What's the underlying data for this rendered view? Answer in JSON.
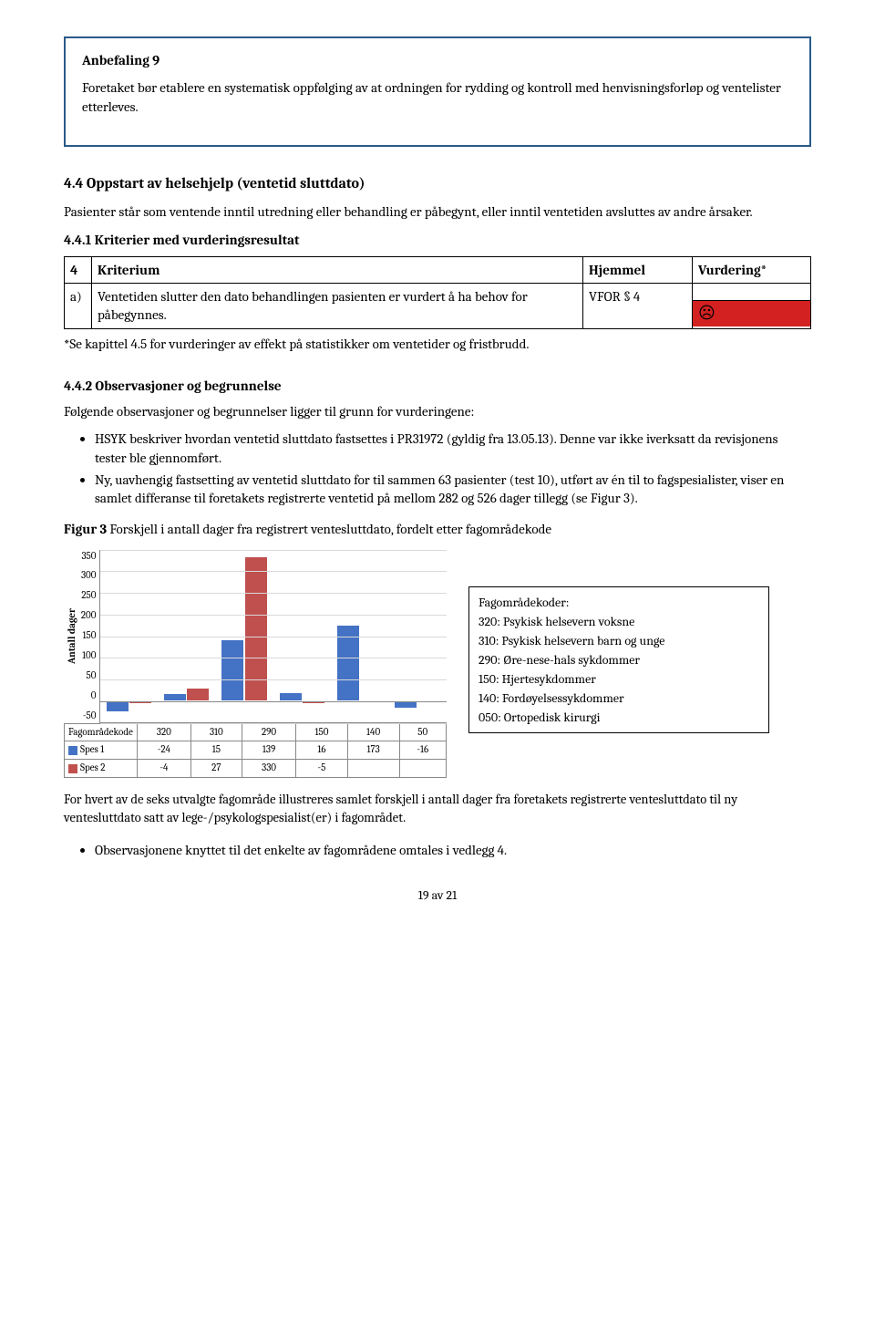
{
  "rec": {
    "title": "Anbefaling 9",
    "text": "Foretaket bør etablere en systematisk oppfølging av at ordningen for rydding og kontroll med henvisningsforløp og ventelister etterleves."
  },
  "sec44": {
    "heading": "4.4 Oppstart av helsehjelp (ventetid sluttdato)",
    "para": "Pasienter står som ventende inntil utredning eller behandling er påbegynt, eller inntil ventetiden avsluttes av andre årsaker."
  },
  "sec441": {
    "heading": "4.4.1 Kriterier med vurderingsresultat"
  },
  "crit": {
    "headers": {
      "idx": "4",
      "krit": "Kriterium",
      "hj": "Hjemmel",
      "vd": "Vurdering*"
    },
    "row": {
      "idx": "a)",
      "text": "Ventetiden slutter den dato behandlingen pasienten er vurdert å ha behov for påbegynnes.",
      "hj": "VFOR § 4",
      "icon": "☹"
    },
    "note": "*Se kapittel 4.5 for vurderinger av effekt på statistikker om ventetider og fristbrudd."
  },
  "sec442": {
    "heading": "4.4.2 Observasjoner og begrunnelse",
    "intro": "Følgende observasjoner og begrunnelser ligger til grunn for vurderingene:",
    "b1": "HSYK beskriver hvordan ventetid sluttdato fastsettes i PR31972 (gyldig fra 13.05.13). Denne var ikke iverksatt da revisjonens tester ble gjennomført.",
    "b2": "Ny, uavhengig fastsetting av ventetid sluttdato for til sammen 63 pasienter (test 10), utført av én til to fagspesialister, viser en samlet differanse til foretakets registrerte ventetid på mellom 282 og 526 dager tillegg (se Figur 3)."
  },
  "fig3": {
    "title_bold": "Figur 3",
    "title_rest": " Forskjell i antall dager fra registrert ventesluttdato, fordelt etter fagområdekode"
  },
  "chart": {
    "ylabel": "Antall dager",
    "ymin": -50,
    "ymax": 350,
    "yticks": [
      "350",
      "300",
      "250",
      "200",
      "150",
      "100",
      "50",
      "0",
      "-50"
    ],
    "colors": {
      "spes1": "#4472c4",
      "spes2": "#c0504d",
      "grid": "#d9d9d9"
    },
    "categories": [
      "320",
      "310",
      "290",
      "150",
      "140",
      "50"
    ],
    "spes1": [
      -24,
      15,
      139,
      16,
      173,
      -16
    ],
    "spes2": [
      -4,
      27,
      330,
      -5,
      null,
      null
    ],
    "row_labels": {
      "cat": "Fagområdekode",
      "s1": "Spes 1",
      "s2": "Spes 2"
    }
  },
  "codes": {
    "title": "Fagområdekoder:",
    "rows": [
      "320: Psykisk helsevern voksne",
      "310: Psykisk helsevern barn og unge",
      "290: Øre-nese-hals sykdommer",
      "150: Hjertesykdommer",
      "140: Fordøyelsessykdommer",
      "050: Ortopedisk kirurgi"
    ]
  },
  "fig_footnote": "For hvert av de seks utvalgte fagområde illustreres samlet forskjell i antall dager fra foretakets registrerte ventesluttdato til ny ventesluttdato satt av lege-/psykologspesialist(er) i fagområdet.",
  "last_bullet": "Observasjonene knyttet til det enkelte av fagområdene omtales i vedlegg 4.",
  "page": "19 av 21"
}
